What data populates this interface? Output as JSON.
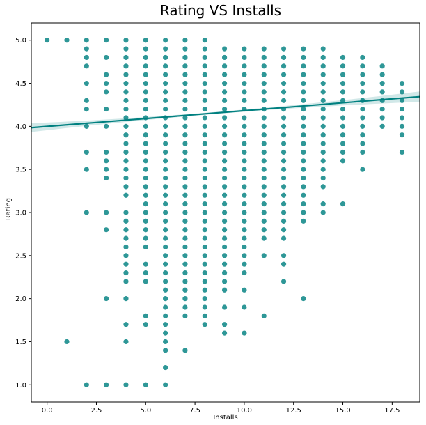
{
  "chart_data": {
    "type": "scatter",
    "title": "Rating VS Installs",
    "xlabel": "Installs",
    "ylabel": "Rating",
    "xlim": [
      -0.8,
      18.9
    ],
    "ylim": [
      0.8,
      5.2
    ],
    "xticks": [
      0.0,
      2.5,
      5.0,
      7.5,
      10.0,
      12.5,
      15.0,
      17.5
    ],
    "xtick_labels": [
      "0.0",
      "2.5",
      "5.0",
      "7.5",
      "10.0",
      "12.5",
      "15.0",
      "17.5"
    ],
    "yticks": [
      1.0,
      1.5,
      2.0,
      2.5,
      3.0,
      3.5,
      4.0,
      4.5,
      5.0
    ],
    "ytick_labels": [
      "1.0",
      "1.5",
      "2.0",
      "2.5",
      "3.0",
      "3.5",
      "4.0",
      "4.5",
      "5.0"
    ],
    "grid": false,
    "point_color": "#008080",
    "regression_line": {
      "x": [
        -0.8,
        18.9
      ],
      "y": [
        3.985,
        4.345
      ],
      "color": "#008080"
    },
    "columns": [
      {
        "x": 0,
        "ratings": [
          5.0
        ]
      },
      {
        "x": 1,
        "ratings": [
          5.0,
          1.5
        ]
      },
      {
        "x": 2,
        "ratings": [
          5.0,
          4.9,
          4.8,
          4.7,
          4.5,
          4.3,
          4.2,
          4.0,
          3.7,
          3.5,
          3.0,
          1.0
        ]
      },
      {
        "x": 3,
        "ratings": [
          5.0,
          4.8,
          4.6,
          4.5,
          4.4,
          4.2,
          4.0,
          3.7,
          3.6,
          3.5,
          3.4,
          3.0,
          2.8,
          2.0,
          1.0
        ]
      },
      {
        "x": 4,
        "min": 3.2,
        "max": 5.0,
        "ratings": [
          3.0,
          2.9,
          2.8,
          2.7,
          2.6,
          2.5,
          2.4,
          2.3,
          2.2,
          2.0,
          1.7,
          1.5,
          1.0
        ]
      },
      {
        "x": 5,
        "min": 3.5,
        "max": 5.0,
        "ratings": [
          3.4,
          3.3,
          3.2,
          3.1,
          3.0,
          2.9,
          2.8,
          2.7,
          2.6,
          2.4,
          2.3,
          2.2,
          1.8,
          1.7,
          1.0
        ]
      },
      {
        "x": 6,
        "min": 1.4,
        "max": 5.0,
        "ratings": [
          1.2,
          1.0
        ]
      },
      {
        "x": 7,
        "min": 1.8,
        "max": 5.0,
        "ratings": [
          1.4
        ]
      },
      {
        "x": 8,
        "min": 1.7,
        "max": 5.0,
        "ratings": []
      },
      {
        "x": 9,
        "min": 2.4,
        "max": 4.9,
        "ratings": [
          2.3,
          2.2,
          2.1,
          1.9,
          1.7,
          1.6
        ]
      },
      {
        "x": 10,
        "min": 2.5,
        "max": 4.9,
        "ratings": [
          2.4,
          2.3,
          2.1,
          1.9,
          1.6
        ]
      },
      {
        "x": 11,
        "min": 2.9,
        "max": 4.9,
        "ratings": [
          2.8,
          2.7,
          2.5,
          1.8
        ]
      },
      {
        "x": 12,
        "min": 2.9,
        "max": 4.9,
        "ratings": [
          2.8,
          2.7,
          2.5,
          2.4,
          2.2
        ]
      },
      {
        "x": 13,
        "min": 3.0,
        "max": 4.9,
        "ratings": [
          2.9,
          2.0
        ]
      },
      {
        "x": 14,
        "min": 3.3,
        "max": 4.9,
        "ratings": [
          3.1,
          3.0
        ]
      },
      {
        "x": 15,
        "min": 3.6,
        "max": 4.8,
        "ratings": [
          3.1
        ]
      },
      {
        "x": 16,
        "min": 3.7,
        "max": 4.8,
        "ratings": [
          3.5
        ]
      },
      {
        "x": 17,
        "min": 4.0,
        "max": 4.7,
        "ratings": []
      },
      {
        "x": 18,
        "min": 3.9,
        "max": 4.5,
        "ratings": [
          3.7
        ]
      }
    ]
  }
}
